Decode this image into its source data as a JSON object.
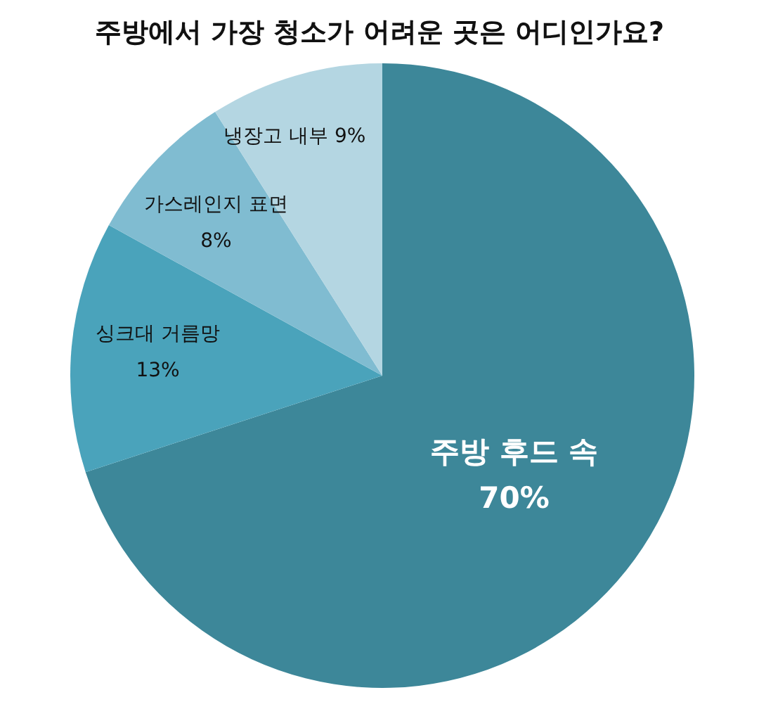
{
  "chart_data": {
    "type": "pie",
    "title": "주방에서 가장 청소가 어려운 곳은 어디인가요?",
    "categories": [
      "주방 후드 속",
      "싱크대 거름망",
      "가스레인지 표면",
      "냉장고 내부"
    ],
    "values": [
      70,
      13,
      8,
      9
    ],
    "colors": [
      "#3d8799",
      "#4aa3bb",
      "#80bcd1",
      "#b4d6e2"
    ],
    "value_labels": [
      "70%",
      "13%",
      "8%",
      "9%"
    ],
    "legend": false
  }
}
